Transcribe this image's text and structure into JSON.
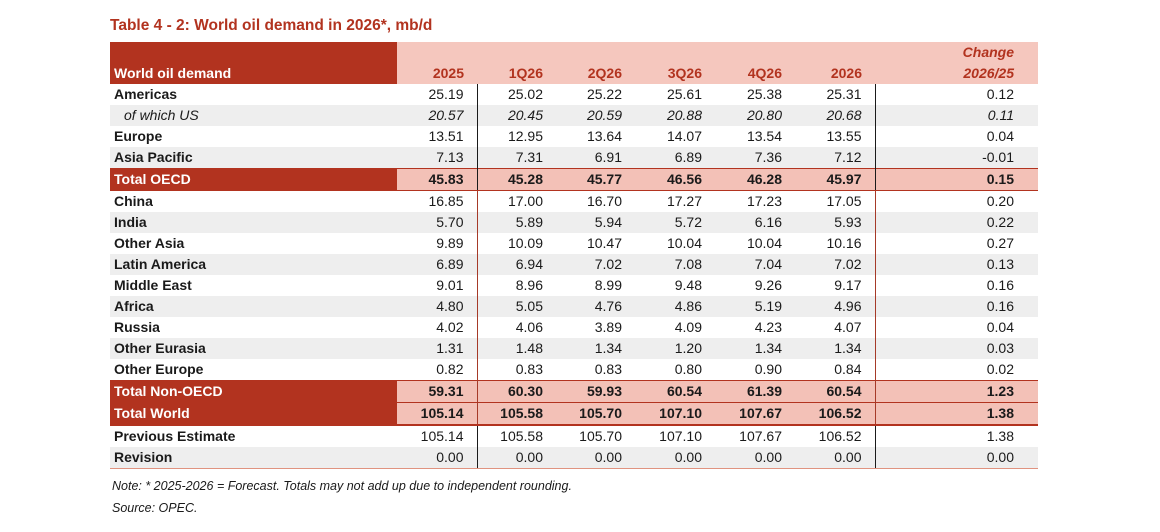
{
  "title": "Table 4 - 2: World oil demand in 2026*, mb/d",
  "colors": {
    "dark_red": "#b2331f",
    "pink_header": "#f5c7be",
    "pink_total": "#f3c1b7",
    "row_gray": "#eeeeee",
    "row_white": "#ffffff",
    "divider_black": "#1a1a1a",
    "divider_red": "#a63a28",
    "bottom_line": "#e09380",
    "text": "#1a1a1a"
  },
  "table": {
    "header": {
      "label": "World oil demand",
      "columns": [
        "2025",
        "1Q26",
        "2Q26",
        "3Q26",
        "4Q26",
        "2026"
      ],
      "change_label": "Change",
      "change_sub": "2026/25"
    },
    "rows": [
      {
        "label": "Americas",
        "style": "normal",
        "values": [
          "25.19",
          "25.02",
          "25.22",
          "25.61",
          "25.38",
          "25.31",
          "0.12"
        ]
      },
      {
        "label": "of which US",
        "style": "italic",
        "values": [
          "20.57",
          "20.45",
          "20.59",
          "20.88",
          "20.80",
          "20.68",
          "0.11"
        ]
      },
      {
        "label": "Europe",
        "style": "normal",
        "values": [
          "13.51",
          "12.95",
          "13.64",
          "14.07",
          "13.54",
          "13.55",
          "0.04"
        ]
      },
      {
        "label": "Asia Pacific",
        "style": "normal",
        "values": [
          "7.13",
          "7.31",
          "6.91",
          "6.89",
          "7.36",
          "7.12",
          "-0.01"
        ]
      },
      {
        "label": "Total OECD",
        "style": "total",
        "values": [
          "45.83",
          "45.28",
          "45.77",
          "46.56",
          "46.28",
          "45.97",
          "0.15"
        ]
      },
      {
        "label": "China",
        "style": "normal",
        "values": [
          "16.85",
          "17.00",
          "16.70",
          "17.27",
          "17.23",
          "17.05",
          "0.20"
        ]
      },
      {
        "label": "India",
        "style": "normal",
        "values": [
          "5.70",
          "5.89",
          "5.94",
          "5.72",
          "6.16",
          "5.93",
          "0.22"
        ]
      },
      {
        "label": "Other Asia",
        "style": "normal",
        "values": [
          "9.89",
          "10.09",
          "10.47",
          "10.04",
          "10.04",
          "10.16",
          "0.27"
        ]
      },
      {
        "label": "Latin America",
        "style": "normal",
        "values": [
          "6.89",
          "6.94",
          "7.02",
          "7.08",
          "7.04",
          "7.02",
          "0.13"
        ]
      },
      {
        "label": "Middle East",
        "style": "normal",
        "values": [
          "9.01",
          "8.96",
          "8.99",
          "9.48",
          "9.26",
          "9.17",
          "0.16"
        ]
      },
      {
        "label": "Africa",
        "style": "normal",
        "values": [
          "4.80",
          "5.05",
          "4.76",
          "4.86",
          "5.19",
          "4.96",
          "0.16"
        ]
      },
      {
        "label": "Russia",
        "style": "normal",
        "values": [
          "4.02",
          "4.06",
          "3.89",
          "4.09",
          "4.23",
          "4.07",
          "0.04"
        ]
      },
      {
        "label": "Other Eurasia",
        "style": "normal",
        "values": [
          "1.31",
          "1.48",
          "1.34",
          "1.20",
          "1.34",
          "1.34",
          "0.03"
        ]
      },
      {
        "label": "Other Europe",
        "style": "normal",
        "values": [
          "0.82",
          "0.83",
          "0.83",
          "0.80",
          "0.90",
          "0.84",
          "0.02"
        ]
      },
      {
        "label": "Total Non-OECD",
        "style": "total",
        "values": [
          "59.31",
          "60.30",
          "59.93",
          "60.54",
          "61.39",
          "60.54",
          "1.23"
        ]
      },
      {
        "label": "Total World",
        "style": "total",
        "values": [
          "105.14",
          "105.58",
          "105.70",
          "107.10",
          "107.67",
          "106.52",
          "1.38"
        ]
      },
      {
        "label": "Previous Estimate",
        "style": "normal",
        "values": [
          "105.14",
          "105.58",
          "105.70",
          "107.10",
          "107.67",
          "106.52",
          "1.38"
        ]
      },
      {
        "label": "Revision",
        "style": "normal",
        "values": [
          "0.00",
          "0.00",
          "0.00",
          "0.00",
          "0.00",
          "0.00",
          "0.00"
        ]
      }
    ]
  },
  "note": "Note: * 2025-2026 = Forecast. Totals may not add up due to independent rounding.",
  "source": "Source: OPEC."
}
